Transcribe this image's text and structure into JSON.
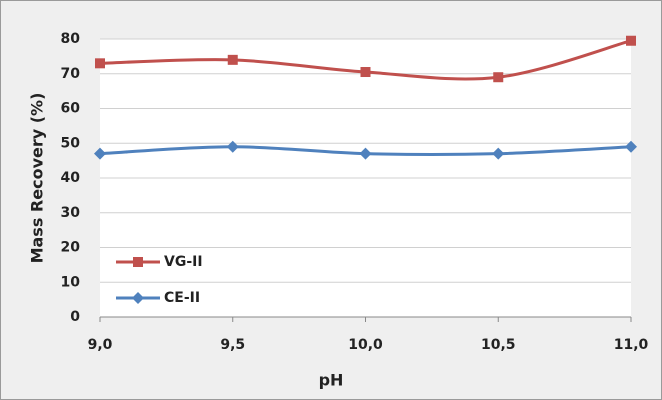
{
  "chart_data": {
    "type": "line",
    "x_label": "pH",
    "y_label": "Mass Recovery (%)",
    "x": [
      9,
      9.5,
      10,
      10.5,
      11
    ],
    "series": [
      {
        "name": "VG-II",
        "color": "#c0504d",
        "marker": "square",
        "values": [
          73,
          74,
          70.5,
          69,
          79.5
        ]
      },
      {
        "name": "CE-II",
        "color": "#4f81bd",
        "marker": "diamond",
        "values": [
          47,
          49,
          47,
          47,
          49
        ]
      }
    ],
    "xlim": [
      9,
      11
    ],
    "xticks": [
      {
        "value": 9,
        "label": "9,0"
      },
      {
        "value": 9.5,
        "label": "9,5"
      },
      {
        "value": 10,
        "label": "10,0"
      },
      {
        "value": 10.5,
        "label": "10,5"
      },
      {
        "value": 11,
        "label": "11,0"
      }
    ],
    "ylim": [
      0,
      80
    ],
    "yticks": [
      0,
      10,
      20,
      30,
      40,
      50,
      60,
      70,
      80
    ],
    "grid": true,
    "smooth": true,
    "legend": "lower left"
  }
}
